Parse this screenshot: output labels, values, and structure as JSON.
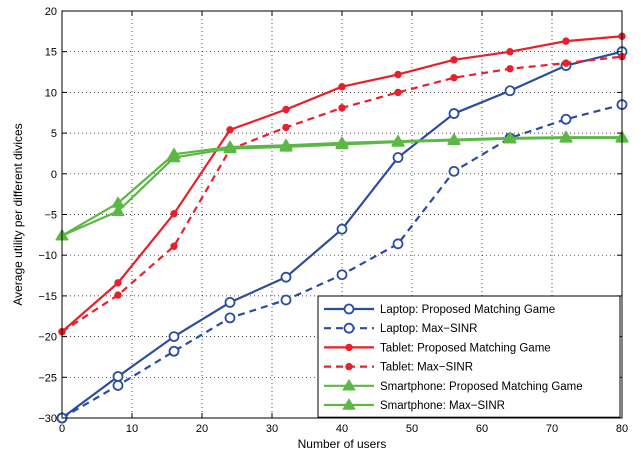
{
  "chart_data": {
    "type": "line",
    "xlabel": "Number of users",
    "ylabel": "Average utility per different divices",
    "xlim": [
      0,
      80
    ],
    "ylim": [
      -30,
      20
    ],
    "xticks": [
      0,
      10,
      20,
      30,
      40,
      50,
      60,
      70,
      80
    ],
    "yticks": [
      -30,
      -25,
      -20,
      -15,
      -10,
      -5,
      0,
      5,
      10,
      15,
      20
    ],
    "grid": true,
    "legend_position": "bottom-right",
    "series": [
      {
        "name": "Laptop: Proposed Matching Game",
        "color": "#2b4da0",
        "dash": "solid",
        "marker": "circle-open",
        "x": [
          0,
          8,
          16,
          24,
          32,
          40,
          48,
          56,
          64,
          72,
          80
        ],
        "y": [
          -30,
          -24.9,
          -20,
          -15.8,
          -12.7,
          -6.8,
          2,
          7.4,
          10.2,
          13.3,
          15
        ]
      },
      {
        "name": "Laptop: Max−SINR",
        "color": "#2b4da0",
        "dash": "dashed",
        "marker": "circle-open",
        "x": [
          0,
          8,
          16,
          24,
          32,
          40,
          48,
          56,
          64,
          72,
          80
        ],
        "y": [
          -30,
          -26,
          -21.8,
          -17.7,
          -15.5,
          -12.4,
          -8.6,
          0.3,
          4.4,
          6.7,
          8.5
        ]
      },
      {
        "name": "Tablet: Proposed Matching Game",
        "color": "#e8202a",
        "dash": "solid",
        "marker": "dot",
        "x": [
          0,
          8,
          16,
          24,
          32,
          40,
          48,
          56,
          64,
          72,
          80
        ],
        "y": [
          -19.4,
          -13.4,
          -4.9,
          5.4,
          7.9,
          10.7,
          12.2,
          14,
          15,
          16.3,
          16.9
        ]
      },
      {
        "name": "Tablet: Max−SINR",
        "color": "#e8202a",
        "dash": "dashed",
        "marker": "dot",
        "x": [
          0,
          8,
          16,
          24,
          32,
          40,
          48,
          56,
          64,
          72,
          80
        ],
        "y": [
          -19.4,
          -14.9,
          -8.9,
          3,
          5.7,
          8.1,
          10,
          11.8,
          12.9,
          13.6,
          14.4
        ]
      },
      {
        "name": "Smartphone: Proposed Matching Game",
        "color": "#5cb845",
        "dash": "solid",
        "marker": "triangle",
        "x": [
          0,
          8,
          16,
          24,
          32,
          40,
          48,
          56,
          64,
          72,
          80
        ],
        "y": [
          -7.6,
          -3.6,
          2.4,
          3.3,
          3.5,
          3.8,
          4,
          4.2,
          4.4,
          4.5,
          4.5
        ]
      },
      {
        "name": "Smartphone: Max−SINR",
        "color": "#5cb845",
        "dash": "solid",
        "marker": "triangle",
        "x": [
          0,
          8,
          16,
          24,
          32,
          40,
          48,
          56,
          64,
          72,
          80
        ],
        "y": [
          -7.6,
          -4.6,
          2,
          3.1,
          3.3,
          3.6,
          3.9,
          4.1,
          4.3,
          4.4,
          4.4
        ]
      }
    ]
  }
}
